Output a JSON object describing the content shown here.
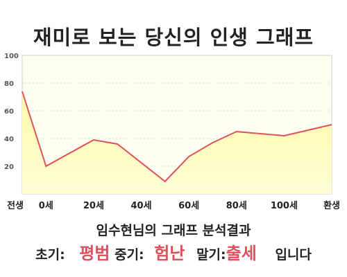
{
  "title": "재미로 보는 당신의 인생 그래프",
  "subtitle": "임수현님의 그래프 분석결과",
  "summary": {
    "early_label": "초기:",
    "early_value": "평범",
    "mid_label": "중기:",
    "mid_value": "험난",
    "late_label": "말기:",
    "late_value": "출세",
    "ending": "입니다"
  },
  "colors": {
    "line": "#e0505a",
    "fill": "#fffcbf",
    "plot_bg": "#fffff0",
    "highlight": "#e0505a"
  },
  "chart_data": {
    "type": "area",
    "title": "재미로 보는 당신의 인생 그래프",
    "xlabel": "",
    "ylabel": "",
    "ylim": [
      0,
      100
    ],
    "yticks": [
      20,
      40,
      60,
      80,
      100
    ],
    "categories": [
      "전생",
      "0세",
      "20세",
      "40세",
      "60세",
      "80세",
      "100세",
      "환생"
    ],
    "x": [
      -10,
      0,
      20,
      30,
      50,
      60,
      70,
      80,
      100,
      120
    ],
    "values": [
      74,
      20,
      39,
      36,
      9,
      27,
      37,
      45,
      42,
      50
    ],
    "x_ticks": [
      -10,
      0,
      20,
      40,
      60,
      80,
      100,
      120
    ],
    "grid": true
  }
}
